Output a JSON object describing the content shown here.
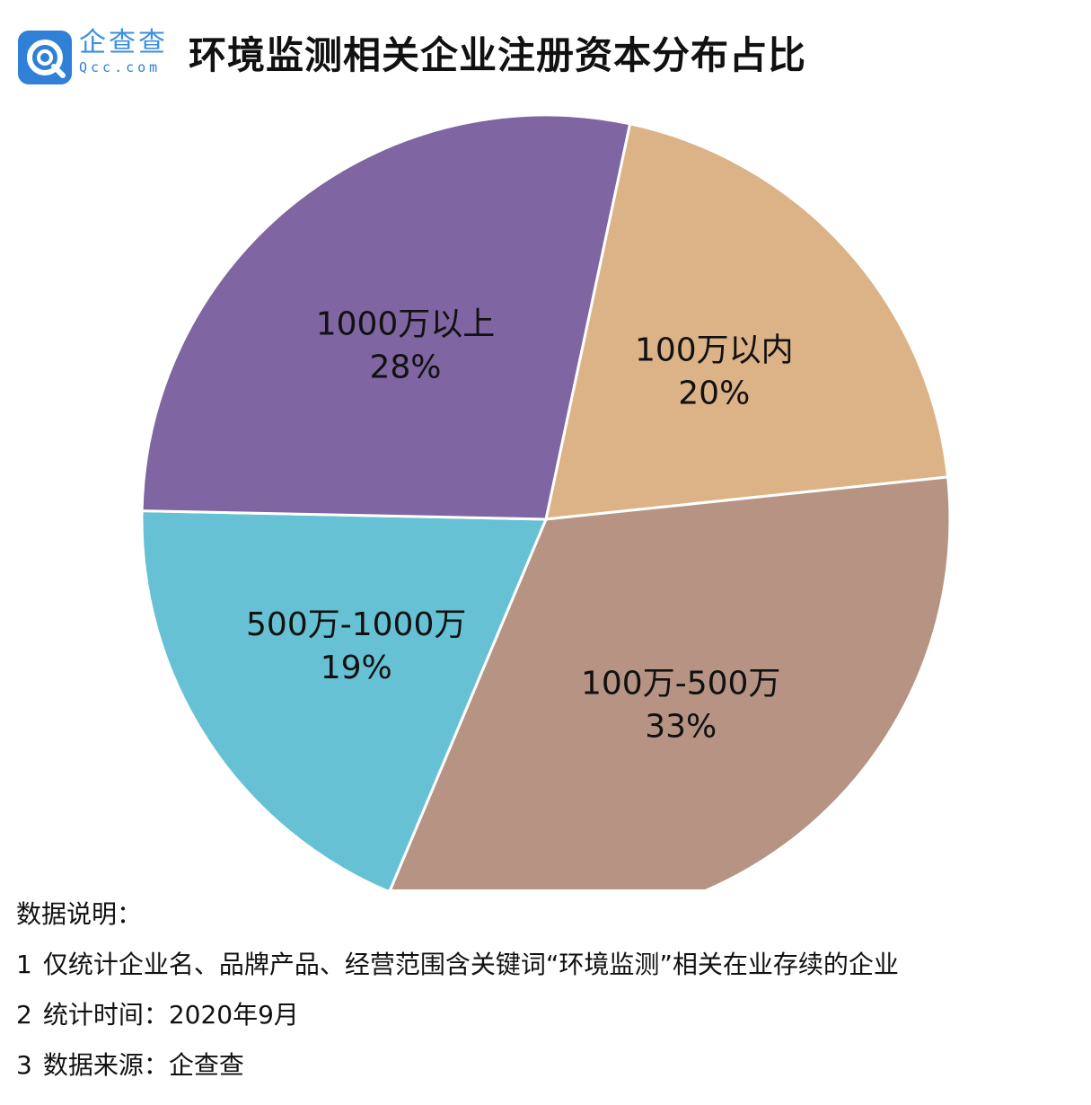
{
  "brand": {
    "name": "企查查",
    "domain": "Qcc.com",
    "logo_icon": "qcc-logo-icon",
    "color": "#2f80d6"
  },
  "title": "环境监测相关企业注册资本分布占比",
  "chart_data": {
    "type": "pie",
    "title": "环境监测相关企业注册资本分布占比",
    "start_angle_deg": 12,
    "direction": "clockwise",
    "slices": [
      {
        "label": "100万以内",
        "value": 20,
        "value_label": "20%",
        "color": "#dcb386"
      },
      {
        "label": "100万-500万",
        "value": 33,
        "value_label": "33%",
        "color": "#b69382"
      },
      {
        "label": "500万-1000万",
        "value": 19,
        "value_label": "19%",
        "color": "#67c1d4"
      },
      {
        "label": "1000万以上",
        "value": 28,
        "value_label": "28%",
        "color": "#7f65a1"
      }
    ],
    "legend": "none",
    "labels_inside_slices": true
  },
  "notes": {
    "heading": "数据说明：",
    "items": [
      {
        "num": "1",
        "text": "仅统计企业名、品牌产品、经营范围含关键词“环境监测”相关在业存续的企业"
      },
      {
        "num": "2",
        "text": "统计时间：2020年9月"
      },
      {
        "num": "3",
        "text": "数据来源：企查查"
      }
    ]
  }
}
